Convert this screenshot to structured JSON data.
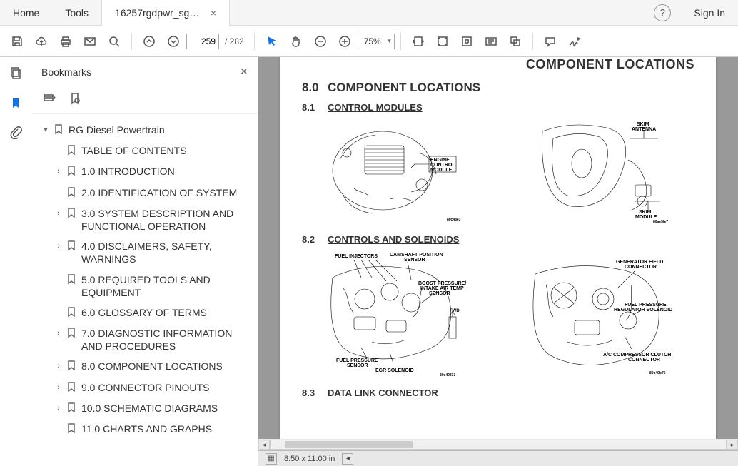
{
  "titlebar": {
    "home": "Home",
    "tools": "Tools",
    "doc_title": "16257rgdpwr_sgml...",
    "signin": "Sign In"
  },
  "toolbar": {
    "page_current": "259",
    "page_total": "282",
    "zoom": "75%"
  },
  "panel": {
    "title": "Bookmarks"
  },
  "tree": {
    "root": "RG Diesel Powertrain",
    "items": [
      {
        "label": "TABLE OF CONTENTS",
        "exp": false
      },
      {
        "label": "1.0 INTRODUCTION",
        "exp": true
      },
      {
        "label": "2.0 IDENTIFICATION OF SYSTEM",
        "exp": false
      },
      {
        "label": "3.0 SYSTEM DESCRIPTION AND FUNCTIONAL OPERATION",
        "exp": true
      },
      {
        "label": "4.0 DISCLAIMERS, SAFETY, WARNINGS",
        "exp": true
      },
      {
        "label": "5.0 REQUIRED TOOLS AND EQUIPMENT",
        "exp": false
      },
      {
        "label": "6.0 GLOSSARY OF TERMS",
        "exp": false
      },
      {
        "label": "7.0 DIAGNOSTIC INFORMATION AND PROCEDURES",
        "exp": true
      },
      {
        "label": "8.0 COMPONENT LOCATIONS",
        "exp": true
      },
      {
        "label": "9.0 CONNECTOR PINOUTS",
        "exp": true
      },
      {
        "label": "10.0 SCHEMATIC DIAGRAMS",
        "exp": true
      },
      {
        "label": "11.0 CHARTS AND GRAPHS",
        "exp": false
      }
    ]
  },
  "doc": {
    "header_cut": "COMPONENT LOCATIONS",
    "h1_num": "8.0",
    "h1": "COMPONENT LOCATIONS",
    "s1_num": "8.1",
    "s1": "CONTROL MODULES",
    "s2_num": "8.2",
    "s2": "CONTROLS AND SOLENOIDS",
    "s3_num": "8.3",
    "s3": "DATA LINK CONNECTOR",
    "fig1_labels": {
      "ecm": "ENGINE\nCONTROL\nMODULE",
      "code": "80c48e3"
    },
    "fig2_labels": {
      "ant": "SKIM\nANTENNA",
      "mod": "SKIM\nMODULE",
      "code": "80ae5fe7"
    },
    "fig3_labels": {
      "inj": "FUEL INJECTORS",
      "cam": "CAMSHAFT POSITION\nSENSOR",
      "boost": "BOOST PRESSURE/\nINTAKE AIR TEMP\nSENSOR",
      "fps": "FUEL PRESSURE\nSENSOR",
      "egr": "EGR SOLENOID",
      "fwd": "FWD",
      "code": "80c49331"
    },
    "fig4_labels": {
      "gen": "GENERATOR FIELD\nCONNECTOR",
      "reg": "FUEL PRESSURE\nREGULATOR SOLENOID",
      "ac": "A/C COMPRESSOR CLUTCH\nCONNECTOR",
      "code": "80c49b75"
    }
  },
  "status": {
    "dims": "8.50 x 11.00 in"
  }
}
